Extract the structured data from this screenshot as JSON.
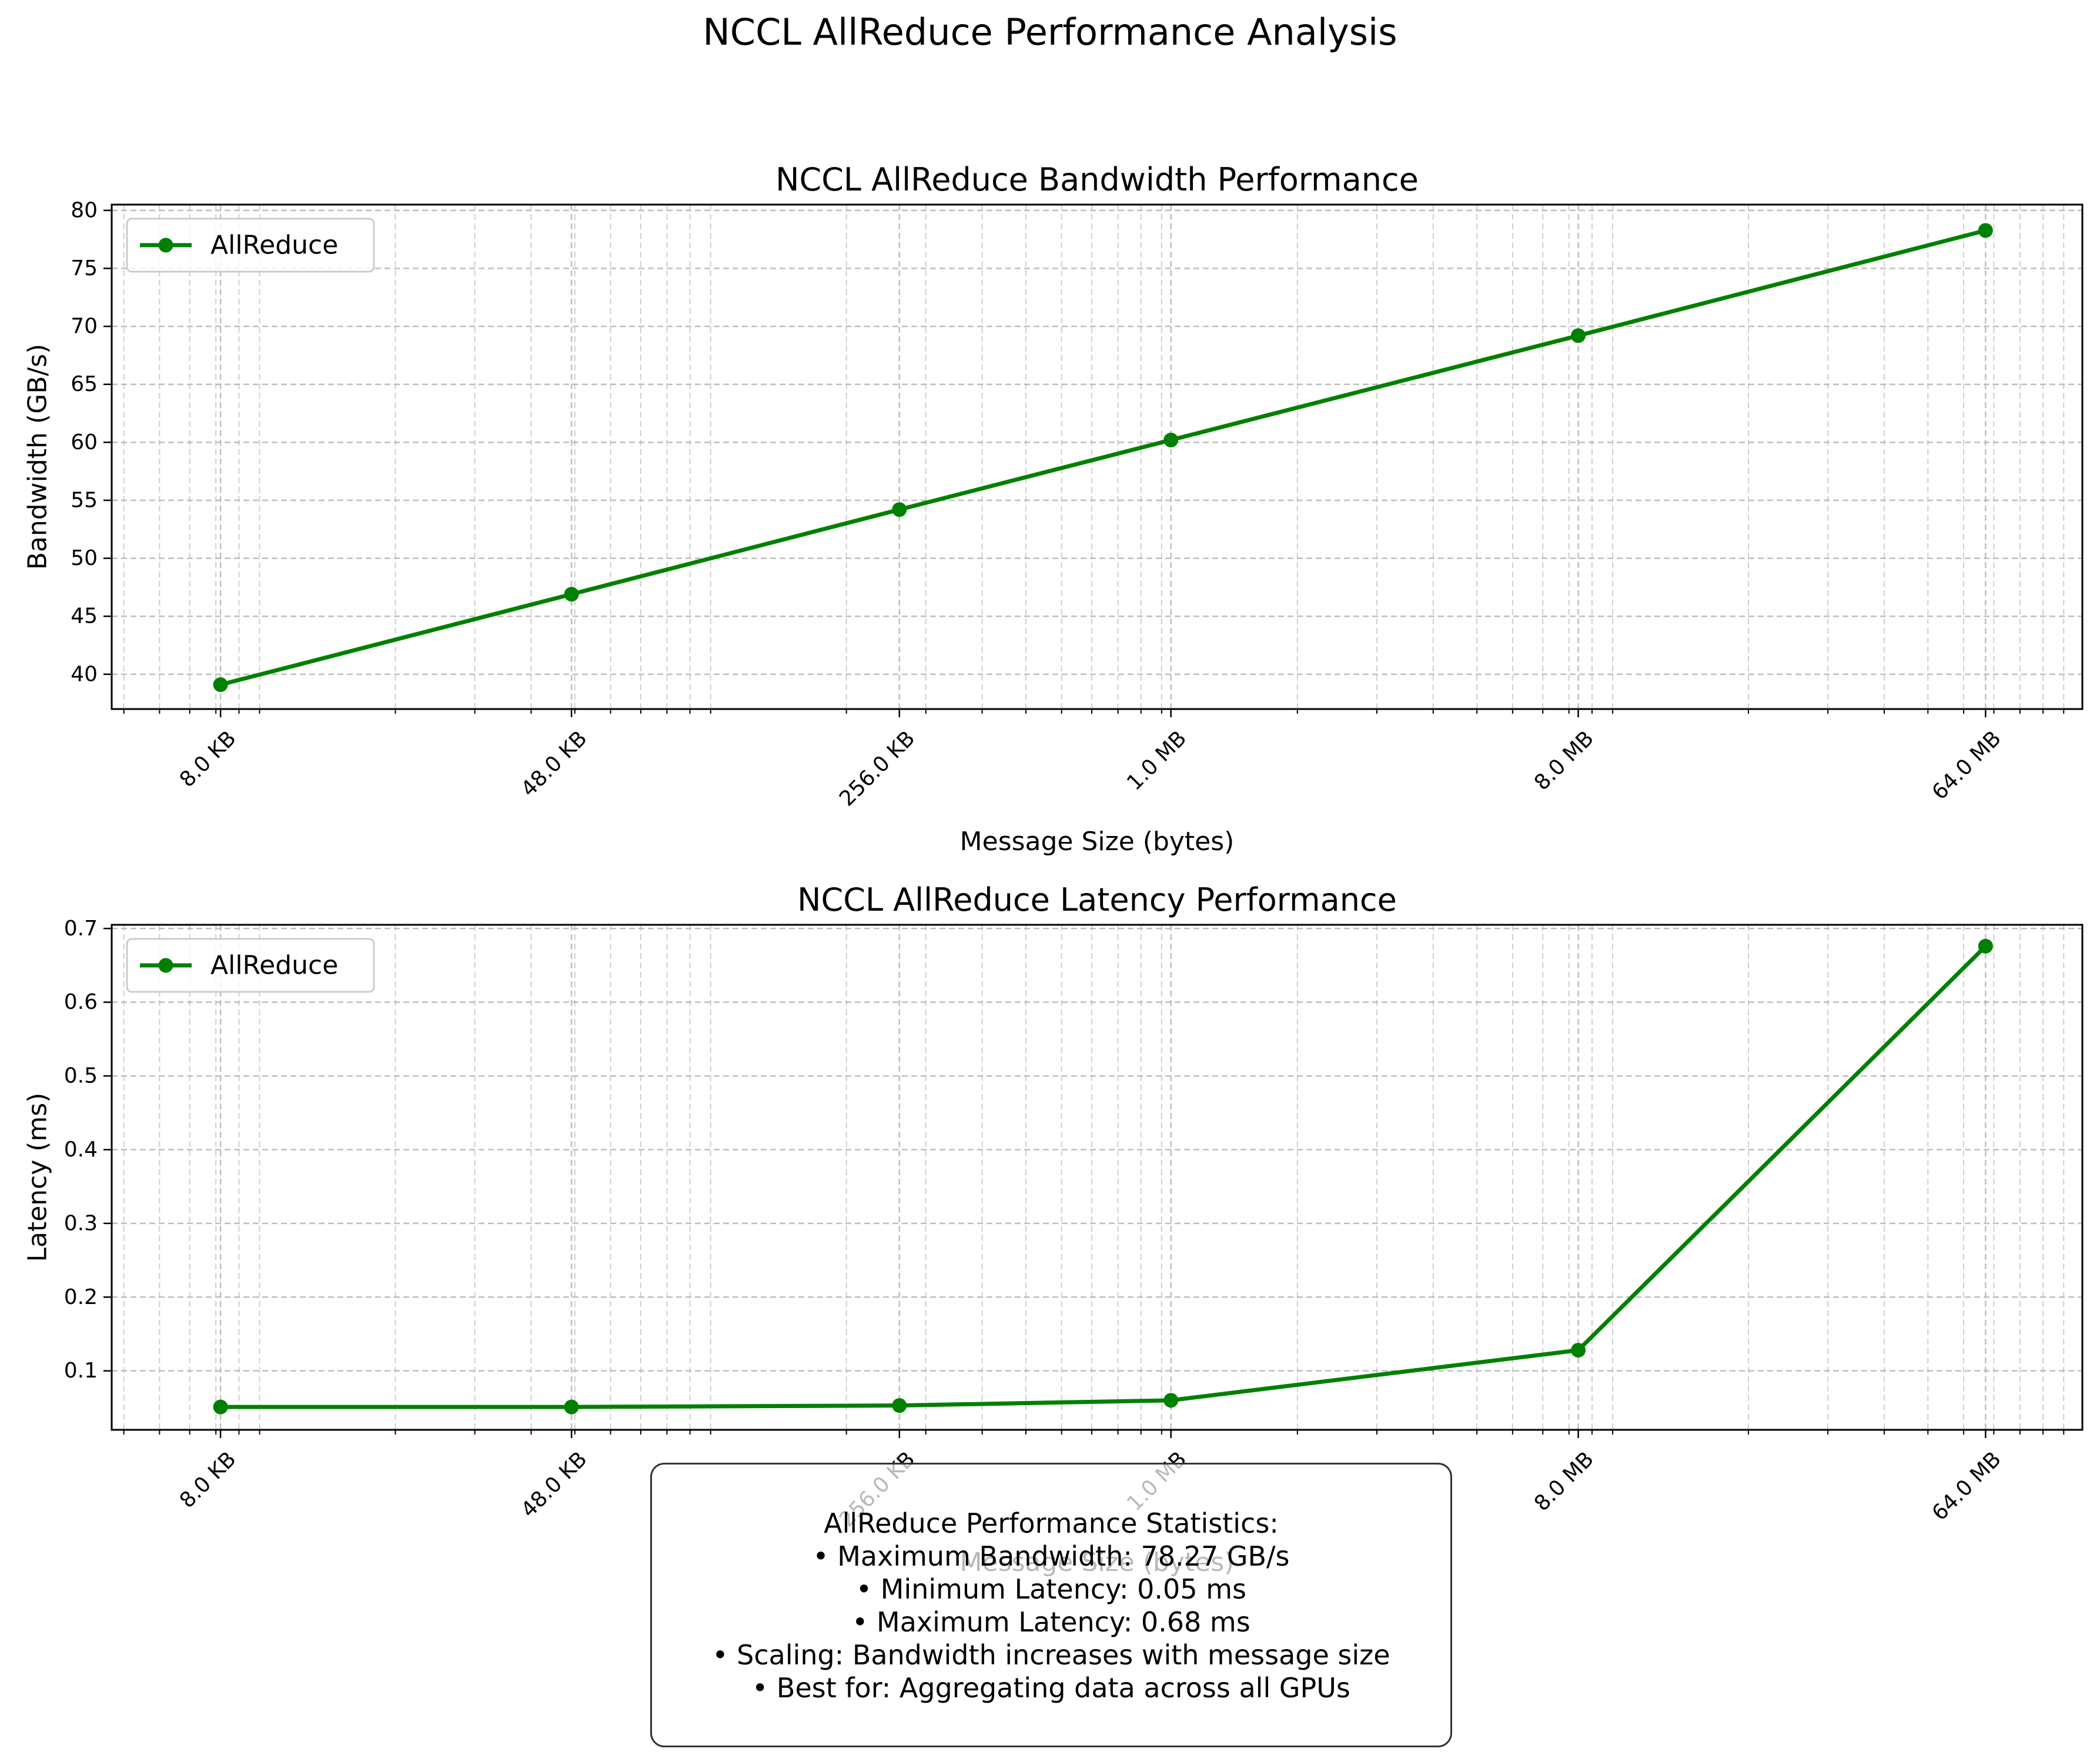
{
  "figure": {
    "title": "NCCL AllReduce Performance Analysis"
  },
  "colors": {
    "series": "#008000",
    "grid": "#b0b0b0",
    "legend_border": "#cccccc"
  },
  "chart_data": [
    {
      "type": "line",
      "title": "NCCL AllReduce Bandwidth Performance",
      "xlabel": "Message Size (bytes)",
      "ylabel": "Bandwidth (GB/s)",
      "xscale": "log",
      "xlim_bytes": [
        4700,
        110000000
      ],
      "ylim": [
        37,
        80.5
      ],
      "x_tick_values": [
        8192,
        49152,
        262144,
        1048576,
        8388608,
        67108864
      ],
      "x_tick_labels": [
        "8.0 KB",
        "48.0 KB",
        "256.0 KB",
        "1.0 MB",
        "8.0 MB",
        "64.0 MB"
      ],
      "y_ticks": [
        40,
        45,
        50,
        55,
        60,
        65,
        70,
        75,
        80
      ],
      "grid": true,
      "legend_position": "upper left",
      "series": [
        {
          "name": "AllReduce",
          "x": [
            8192,
            49152,
            262144,
            1048576,
            8388608,
            67108864
          ],
          "values": [
            39.1,
            46.9,
            54.2,
            60.2,
            69.2,
            78.27
          ]
        }
      ]
    },
    {
      "type": "line",
      "title": "NCCL AllReduce Latency Performance",
      "xlabel": "Message Size (bytes)",
      "ylabel": "Latency (ms)",
      "xscale": "log",
      "xlim_bytes": [
        4700,
        110000000
      ],
      "ylim": [
        0.02,
        0.705
      ],
      "x_tick_values": [
        8192,
        49152,
        262144,
        1048576,
        8388608,
        67108864
      ],
      "x_tick_labels": [
        "8.0 KB",
        "48.0 KB",
        "256.0 KB",
        "1.0 MB",
        "8.0 MB",
        "64.0 MB"
      ],
      "y_ticks": [
        0.1,
        0.2,
        0.3,
        0.4,
        0.5,
        0.6,
        0.7
      ],
      "y_tick_labels": [
        "0.1",
        "0.2",
        "0.3",
        "0.4",
        "0.5",
        "0.6",
        "0.7"
      ],
      "grid": true,
      "legend_position": "upper left",
      "series": [
        {
          "name": "AllReduce",
          "x": [
            8192,
            49152,
            262144,
            1048576,
            8388608,
            67108864
          ],
          "values": [
            0.051,
            0.051,
            0.053,
            0.06,
            0.128,
            0.676
          ]
        }
      ]
    }
  ],
  "stats": {
    "heading": "AllReduce Performance Statistics:",
    "lines": [
      "• Maximum Bandwidth: 78.27 GB/s",
      "• Minimum Latency: 0.05 ms",
      "• Maximum Latency: 0.68 ms",
      "• Scaling: Bandwidth increases with message size",
      "• Best for: Aggregating data across all GPUs"
    ]
  }
}
